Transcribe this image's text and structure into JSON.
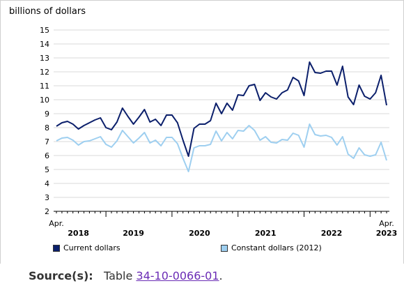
{
  "chart_data": {
    "type": "line",
    "unit_label": "billions of dollars",
    "y_ticks": [
      2,
      3,
      4,
      5,
      6,
      7,
      8,
      9,
      10,
      11,
      12,
      13,
      14,
      15
    ],
    "ylim": [
      2,
      15
    ],
    "x_start": "2018-04",
    "x_end": "2023-04",
    "x_labels": [
      {
        "month": "2018-04",
        "text": "Apr."
      },
      {
        "month": "2023-04",
        "text": "Apr."
      }
    ],
    "year_labels": [
      {
        "month": "2018-08",
        "text": "2018"
      },
      {
        "month": "2019-06",
        "text": "2019"
      },
      {
        "month": "2020-06",
        "text": "2020"
      },
      {
        "month": "2021-06",
        "text": "2021"
      },
      {
        "month": "2022-06",
        "text": "2022"
      },
      {
        "month": "2023-04",
        "text": "2023"
      }
    ],
    "grid": true,
    "legend_position": "bottom",
    "series": [
      {
        "name": "Current dollars",
        "color": "#0b1f6b",
        "values": [
          8.1,
          8.35,
          8.45,
          8.25,
          7.9,
          8.15,
          8.35,
          8.55,
          8.7,
          8.0,
          7.85,
          8.4,
          9.4,
          8.8,
          8.25,
          8.75,
          9.3,
          8.4,
          8.6,
          8.15,
          8.9,
          8.9,
          8.35,
          7.1,
          5.95,
          7.95,
          8.25,
          8.25,
          8.5,
          9.75,
          9.0,
          9.75,
          9.25,
          10.35,
          10.3,
          11.0,
          11.1,
          9.95,
          10.5,
          10.2,
          10.05,
          10.5,
          10.7,
          11.6,
          11.35,
          10.3,
          12.7,
          11.95,
          11.9,
          12.05,
          12.05,
          11.05,
          12.4,
          10.2,
          9.65,
          11.05,
          10.25,
          10.05,
          10.5,
          11.75,
          9.6
        ]
      },
      {
        "name": "Constant dollars (2012)",
        "color": "#9ecff0",
        "values": [
          7.05,
          7.25,
          7.3,
          7.1,
          6.75,
          7.0,
          7.05,
          7.2,
          7.35,
          6.8,
          6.6,
          7.05,
          7.8,
          7.35,
          6.9,
          7.25,
          7.65,
          6.9,
          7.1,
          6.7,
          7.3,
          7.3,
          6.85,
          5.8,
          4.85,
          6.55,
          6.7,
          6.7,
          6.8,
          7.75,
          7.05,
          7.65,
          7.2,
          7.8,
          7.75,
          8.15,
          7.8,
          7.1,
          7.35,
          6.95,
          6.9,
          7.15,
          7.1,
          7.6,
          7.45,
          6.6,
          8.25,
          7.5,
          7.4,
          7.45,
          7.3,
          6.75,
          7.35,
          6.1,
          5.8,
          6.55,
          6.05,
          5.95,
          6.05,
          6.95,
          5.65
        ]
      }
    ]
  },
  "source": {
    "label": "Source(s):",
    "text": "Table",
    "link": "34-10-0066-01",
    "end": "."
  }
}
